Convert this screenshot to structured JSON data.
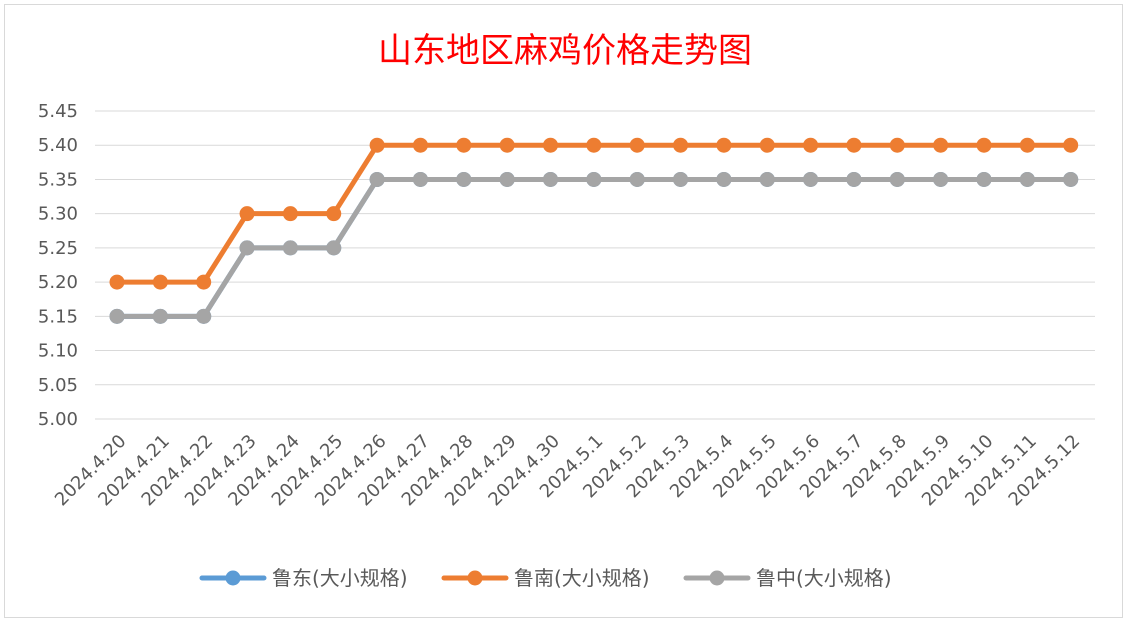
{
  "chart_data": {
    "type": "line",
    "title": "山东地区麻鸡价格走势图",
    "xlabel": "",
    "ylabel": "",
    "ylim": [
      5.0,
      5.45
    ],
    "y_ticks": [
      "5.00",
      "5.05",
      "5.10",
      "5.15",
      "5.20",
      "5.25",
      "5.30",
      "5.35",
      "5.40",
      "5.45"
    ],
    "grid": true,
    "legend_position": "bottom",
    "categories": [
      "2024.4.20",
      "2024.4.21",
      "2024.4.22",
      "2024.4.23",
      "2024.4.24",
      "2024.4.25",
      "2024.4.26",
      "2024.4.27",
      "2024.4.28",
      "2024.4.29",
      "2024.4.30",
      "2024.5.1",
      "2024.5.2",
      "2024.5.3",
      "2024.5.4",
      "2024.5.5",
      "2024.5.6",
      "2024.5.7",
      "2024.5.8",
      "2024.5.9",
      "2024.5.10",
      "2024.5.11",
      "2024.5.12"
    ],
    "series": [
      {
        "name": "鲁东(大小规格)",
        "color": "#5b9bd5",
        "values": [
          5.15,
          5.15,
          5.15,
          5.25,
          5.25,
          5.25,
          5.35,
          5.35,
          5.35,
          5.35,
          5.35,
          5.35,
          5.35,
          5.35,
          5.35,
          5.35,
          5.35,
          5.35,
          5.35,
          5.35,
          5.35,
          5.35,
          5.35
        ]
      },
      {
        "name": "鲁南(大小规格)",
        "color": "#ed7d31",
        "values": [
          5.2,
          5.2,
          5.2,
          5.3,
          5.3,
          5.3,
          5.4,
          5.4,
          5.4,
          5.4,
          5.4,
          5.4,
          5.4,
          5.4,
          5.4,
          5.4,
          5.4,
          5.4,
          5.4,
          5.4,
          5.4,
          5.4,
          5.4
        ]
      },
      {
        "name": "鲁中(大小规格)",
        "color": "#a5a5a5",
        "values": [
          5.15,
          5.15,
          5.15,
          5.25,
          5.25,
          5.25,
          5.35,
          5.35,
          5.35,
          5.35,
          5.35,
          5.35,
          5.35,
          5.35,
          5.35,
          5.35,
          5.35,
          5.35,
          5.35,
          5.35,
          5.35,
          5.35,
          5.35
        ]
      }
    ]
  }
}
